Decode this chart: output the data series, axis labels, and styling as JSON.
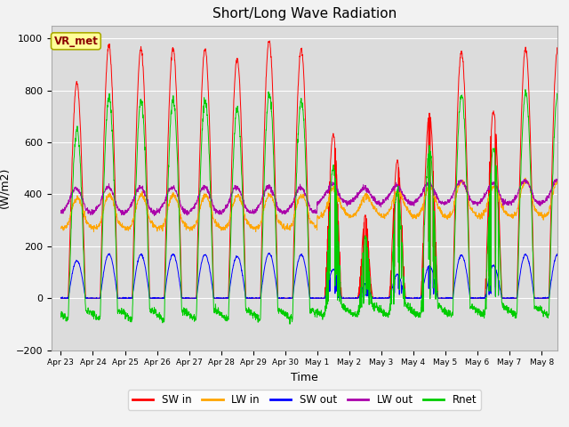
{
  "title": "Short/Long Wave Radiation",
  "xlabel": "Time",
  "ylabel": "(W/m2)",
  "ylim": [
    -200,
    1050
  ],
  "annotation": "VR_met",
  "legend": [
    "SW in",
    "LW in",
    "SW out",
    "LW out",
    "Rnet"
  ],
  "colors": {
    "SW in": "#FF0000",
    "LW in": "#FFA500",
    "SW out": "#0000FF",
    "LW out": "#AA00AA",
    "Rnet": "#00CC00"
  },
  "xtick_labels": [
    "Apr 23",
    "Apr 24",
    "Apr 25",
    "Apr 26",
    "Apr 27",
    "Apr 28",
    "Apr 29",
    "Apr 30",
    "May 1",
    "May 2",
    "May 3",
    "May 4",
    "May 5",
    "May 6",
    "May 7",
    "May 8"
  ],
  "ytick_labels": [
    -200,
    0,
    200,
    400,
    600,
    800,
    1000
  ],
  "figsize": [
    6.4,
    4.8
  ],
  "dpi": 100,
  "plot_bg_color": "#DCDCDC",
  "fig_bg_color": "#F2F2F2",
  "n_days": 16,
  "dt_min": 10
}
